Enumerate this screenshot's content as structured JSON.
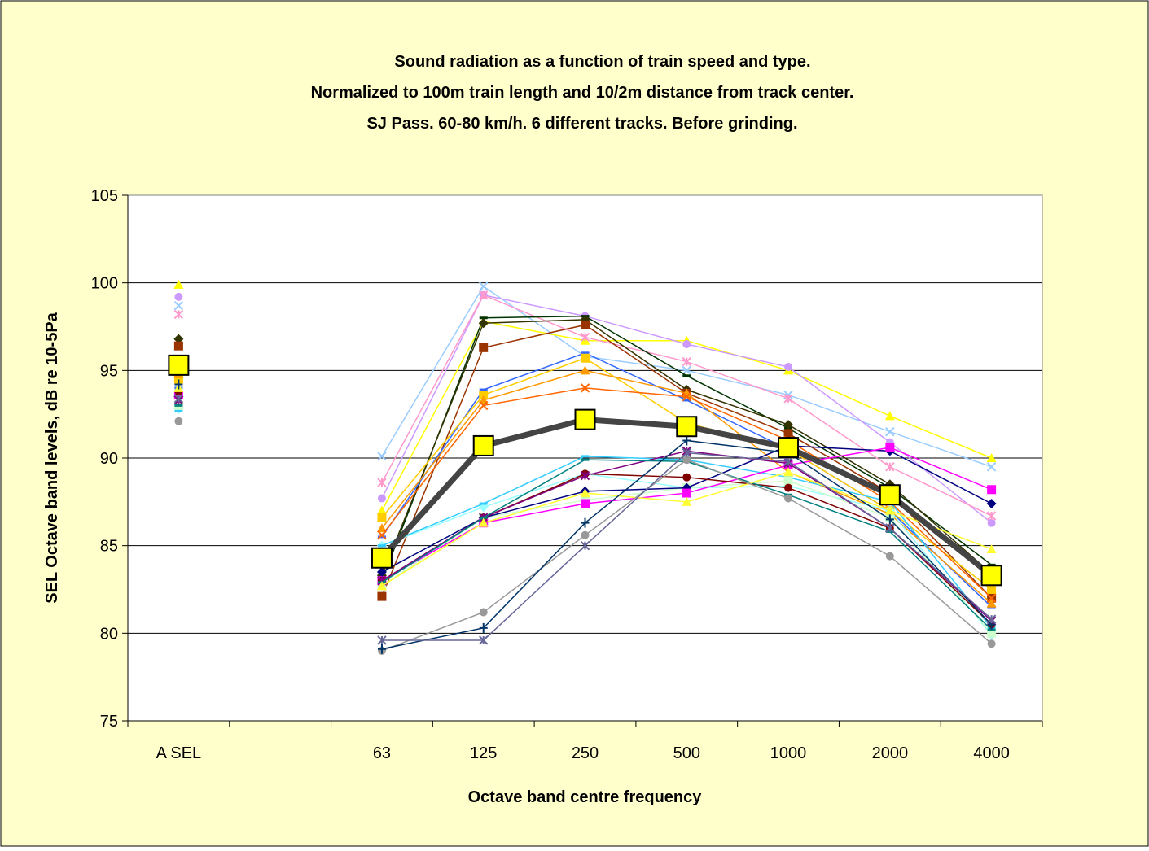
{
  "chart_data": {
    "type": "line",
    "title": [
      "Sound radiation as a function of train speed and type.",
      "Normalized to 100m train length and 10/2m distance from track center.",
      "SJ Pass. 60-80 km/h.  6 different tracks.  Before grinding."
    ],
    "x_label": "Octave band centre frequency",
    "y_label": "SEL Octave band levels, dB re 10-5Pa",
    "categories": [
      "A SEL",
      null,
      "63",
      "125",
      "250",
      "500",
      "1000",
      "2000",
      "4000"
    ],
    "ylim": [
      75,
      105
    ],
    "yticks": [
      75,
      80,
      85,
      90,
      95,
      100,
      105
    ],
    "grid": true,
    "series": [
      {
        "color": "#99ccff",
        "marker": "x",
        "values": [
          98.7,
          null,
          90.1,
          99.8,
          95.8,
          95.0,
          93.6,
          91.5,
          89.5
        ]
      },
      {
        "color": "#ffff00",
        "marker": "triangle",
        "values": [
          99.9,
          null,
          87.0,
          97.8,
          96.7,
          96.7,
          95.0,
          92.4,
          90.0
        ]
      },
      {
        "color": "#cc99ff",
        "marker": "circle",
        "values": [
          99.2,
          null,
          87.7,
          99.3,
          98.1,
          96.5,
          95.2,
          90.9,
          86.3
        ]
      },
      {
        "color": "#ff99cc",
        "marker": "star",
        "values": [
          98.2,
          null,
          88.6,
          99.3,
          96.9,
          95.5,
          93.4,
          89.5,
          86.7
        ]
      },
      {
        "color": "#003300",
        "marker": "dash",
        "values": [
          96.8,
          null,
          83.0,
          98.0,
          98.1,
          94.7,
          91.7,
          88.3,
          83.9
        ]
      },
      {
        "color": "#333300",
        "marker": "diamond",
        "values": [
          96.8,
          null,
          83.3,
          97.7,
          97.9,
          93.9,
          91.9,
          88.5,
          83.4
        ]
      },
      {
        "color": "#993300",
        "marker": "square",
        "values": [
          96.4,
          null,
          82.1,
          96.3,
          97.6,
          93.7,
          91.4,
          88.0,
          82.0
        ]
      },
      {
        "color": "#3366ff",
        "marker": "dash",
        "values": [
          94.0,
          null,
          85.5,
          93.9,
          96.0,
          93.3,
          90.5,
          87.0,
          81.5
        ]
      },
      {
        "color": "#ffcc00",
        "marker": "square",
        "values": [
          94.5,
          null,
          86.6,
          93.6,
          95.7,
          92.0,
          90.5,
          87.0,
          82.5
        ]
      },
      {
        "color": "#ff9900",
        "marker": "triangle",
        "values": [
          94.8,
          null,
          86.0,
          93.3,
          95.0,
          93.7,
          89.2,
          86.8,
          81.7
        ]
      },
      {
        "color": "#ff6600",
        "marker": "x",
        "values": [
          95.0,
          null,
          85.6,
          93.0,
          94.0,
          93.5,
          91.0,
          87.5,
          82.0
        ]
      },
      {
        "color": "#99ffff",
        "marker": "diamond",
        "values": [
          92.8,
          null,
          85.0,
          87.2,
          89.1,
          88.3,
          88.4,
          87.0,
          79.9
        ]
      },
      {
        "color": "#33ccff",
        "marker": "dash",
        "values": [
          92.7,
          null,
          85.0,
          87.4,
          90.1,
          89.9,
          88.9,
          87.5,
          80.3
        ]
      },
      {
        "color": "#ccffcc",
        "marker": "square",
        "values": [
          93.0,
          null,
          82.7,
          86.6,
          87.6,
          88.3,
          88.7,
          86.6,
          80.0
        ]
      },
      {
        "color": "#000080",
        "marker": "diamond",
        "values": [
          93.5,
          null,
          83.5,
          86.6,
          88.1,
          88.3,
          90.7,
          90.4,
          87.4
        ]
      },
      {
        "color": "#ff00ff",
        "marker": "square",
        "values": [
          93.6,
          null,
          83.0,
          86.3,
          87.4,
          88.0,
          89.6,
          90.6,
          88.2
        ]
      },
      {
        "color": "#800000",
        "marker": "circle",
        "values": [
          93.8,
          null,
          83.0,
          86.6,
          89.1,
          88.9,
          88.3,
          86.0,
          80.5
        ]
      },
      {
        "color": "#800080",
        "marker": "star",
        "values": [
          93.3,
          null,
          83.0,
          86.6,
          89.0,
          90.4,
          89.7,
          86.0,
          80.7
        ]
      },
      {
        "color": "#008080",
        "marker": "dash",
        "values": [
          93.0,
          null,
          82.9,
          86.6,
          89.9,
          89.8,
          87.9,
          85.8,
          80.2
        ]
      },
      {
        "color": "#ffff33",
        "marker": "triangle",
        "values": [
          94.0,
          null,
          82.7,
          86.3,
          88.0,
          87.5,
          89.2,
          87.0,
          84.8
        ]
      },
      {
        "color": "#999999",
        "marker": "circle",
        "values": [
          92.1,
          null,
          79.0,
          81.2,
          85.6,
          89.9,
          87.7,
          84.4,
          79.4
        ]
      },
      {
        "color": "#003366",
        "marker": "plus",
        "values": [
          94.2,
          null,
          79.1,
          80.3,
          86.3,
          91.0,
          90.3,
          86.5,
          80.5
        ]
      },
      {
        "color": "#666699",
        "marker": "star",
        "values": [
          93.4,
          null,
          79.6,
          79.6,
          85.0,
          90.3,
          89.8,
          86.0,
          80.8
        ]
      },
      {
        "color": "#ffff00",
        "line_color": "#444444",
        "marker": "square",
        "line_width": 7,
        "marker_size": 12,
        "values": [
          95.3,
          null,
          84.3,
          90.7,
          92.2,
          91.8,
          90.6,
          87.9,
          83.3
        ]
      }
    ]
  }
}
